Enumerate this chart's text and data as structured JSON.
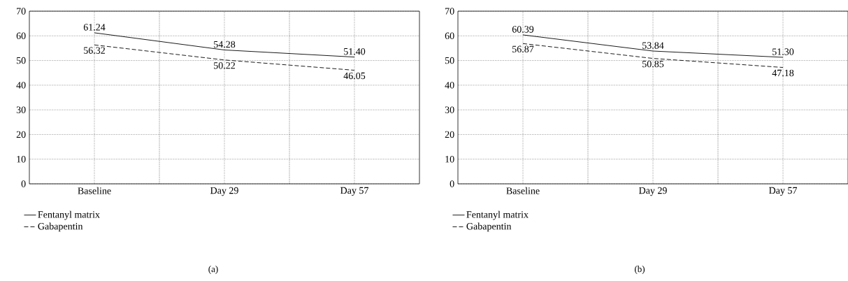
{
  "chart_data": [
    {
      "type": "line",
      "categories": [
        "Baseline",
        "Day 29",
        "Day 57"
      ],
      "series": [
        {
          "name": "Fentanyl matrix",
          "color": "#000000",
          "line_style": "solid",
          "values": [
            61.24,
            54.28,
            51.4
          ],
          "value_labels": [
            "61.24",
            "54.28",
            "51.40"
          ]
        },
        {
          "name": "Gabapentin",
          "color": "#000000",
          "line_style": "dashed",
          "values": [
            56.32,
            50.22,
            46.05
          ],
          "value_labels": [
            "56.32",
            "50.22",
            "46.05"
          ]
        }
      ],
      "ylim": [
        0,
        70
      ],
      "yticks": [
        0,
        10,
        20,
        30,
        40,
        50,
        60,
        70
      ],
      "grid": true,
      "legend": "bottom left",
      "marker": "none",
      "annotations": [
        "(a)"
      ]
    },
    {
      "type": "line",
      "categories": [
        "Baseline",
        "Day 29",
        "Day 57"
      ],
      "series": [
        {
          "name": "Fentanyl matrix",
          "color": "#000000",
          "line_style": "solid",
          "values": [
            60.39,
            53.84,
            51.3
          ],
          "value_labels": [
            "60.39",
            "53.84",
            "51.30"
          ]
        },
        {
          "name": "Gabapentin",
          "color": "#000000",
          "line_style": "dashed",
          "values": [
            56.87,
            50.85,
            47.18
          ],
          "value_labels": [
            "56.87",
            "50.85",
            "47.18"
          ]
        }
      ],
      "ylim": [
        0,
        70
      ],
      "yticks": [
        0,
        10,
        20,
        30,
        40,
        50,
        60,
        70
      ],
      "grid": true,
      "legend": "bottom left",
      "marker": "none",
      "annotations": [
        "(b)"
      ]
    }
  ]
}
